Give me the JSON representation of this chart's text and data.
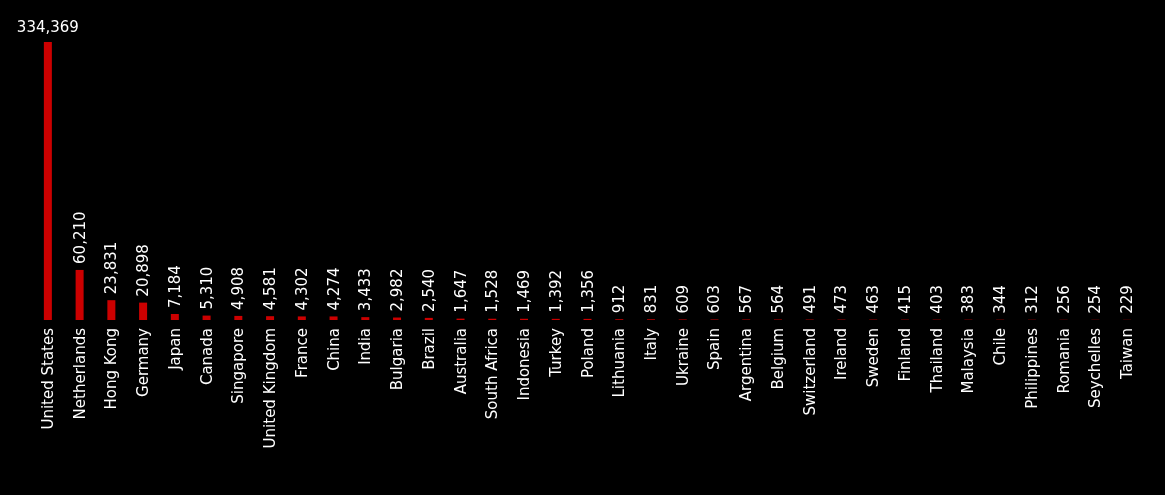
{
  "chart_data": {
    "type": "bar",
    "categories": [
      "United States",
      "Netherlands",
      "Hong Kong",
      "Germany",
      "Japan",
      "Canada",
      "Singapore",
      "United Kingdom",
      "France",
      "China",
      "India",
      "Bulgaria",
      "Brazil",
      "Australia",
      "South Africa",
      "Indonesia",
      "Turkey",
      "Poland",
      "Lithuania",
      "Italy",
      "Ukraine",
      "Spain",
      "Argentina",
      "Belgium",
      "Switzerland",
      "Ireland",
      "Sweden",
      "Finland",
      "Thailand",
      "Malaysia",
      "Chile",
      "Philippines",
      "Romania",
      "Seychelles",
      "Taiwan"
    ],
    "values": [
      334369,
      60210,
      23831,
      20898,
      7184,
      5310,
      4908,
      4581,
      4302,
      4274,
      3433,
      2982,
      2540,
      1647,
      1528,
      1469,
      1392,
      1356,
      912,
      831,
      609,
      603,
      567,
      564,
      491,
      473,
      463,
      415,
      403,
      383,
      344,
      312,
      256,
      254,
      229
    ],
    "value_labels": [
      "334,369",
      "60,210",
      "23,831",
      "20,898",
      "7,184",
      "5,310",
      "4,908",
      "4,581",
      "4,302",
      "4,274",
      "3,433",
      "2,982",
      "2,540",
      "1,647",
      "1,528",
      "1,469",
      "1,392",
      "1,356",
      "912",
      "831",
      "609",
      "603",
      "567",
      "564",
      "491",
      "473",
      "463",
      "415",
      "403",
      "383",
      "344",
      "312",
      "256",
      "254",
      "229"
    ],
    "color": "#cc0000",
    "ylim": [
      0,
      334369
    ],
    "grid": false
  }
}
